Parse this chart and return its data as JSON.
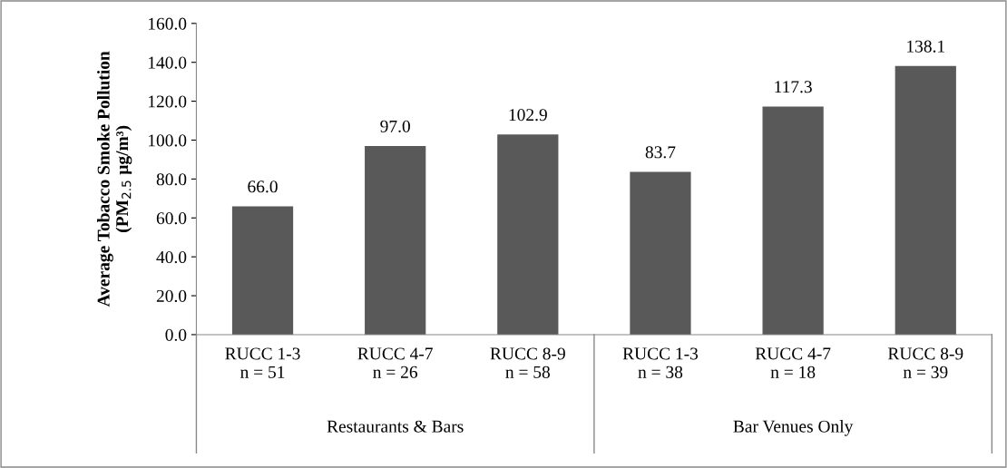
{
  "chart_data": {
    "type": "bar",
    "ylabel": "Average Tobacco Smoke Pollution\n(PM$_{2.5}$ µg/m³)",
    "categories": [
      "RUCC 1-3\nn = 51",
      "RUCC 4-7\nn = 26",
      "RUCC 8-9\nn = 58",
      "RUCC 1-3\nn = 38",
      "RUCC 4-7\nn = 18",
      "RUCC 8-9\nn = 39"
    ],
    "values": [
      66.0,
      97.0,
      102.9,
      83.7,
      117.3,
      138.1
    ],
    "value_labels": [
      "66.0",
      "97.0",
      "102.9",
      "83.7",
      "117.3",
      "138.1"
    ],
    "color": "#595959",
    "ylim": [
      0,
      160
    ],
    "yticks": [
      {
        "value": 0,
        "label": "0.0"
      },
      {
        "value": 20,
        "label": "20.0"
      },
      {
        "value": 40,
        "label": "40.0"
      },
      {
        "value": 60,
        "label": "60.0"
      },
      {
        "value": 80,
        "label": "80.0"
      },
      {
        "value": 100,
        "label": "100.0"
      },
      {
        "value": 120,
        "label": "120.0"
      },
      {
        "value": 140,
        "label": "140.0"
      },
      {
        "value": 160,
        "label": "160.0"
      }
    ],
    "annotations": [
      "Restaurants & Bars",
      "Bar Venues Only"
    ],
    "grid": false
  }
}
